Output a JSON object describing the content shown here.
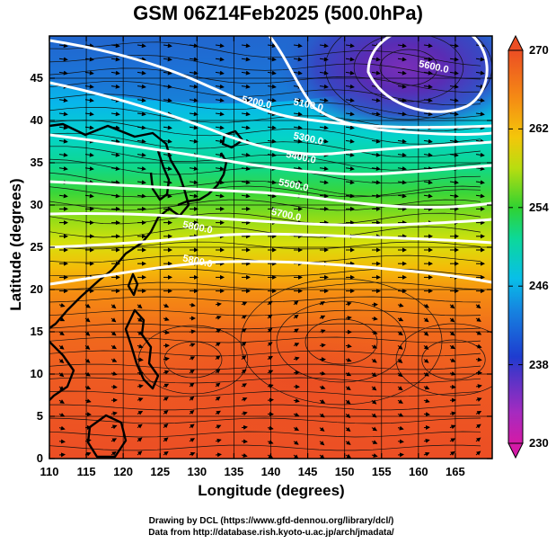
{
  "title": "GSM 06Z14Feb2025 (500.0hPa)",
  "axes": {
    "xlabel": "Longitude (degrees)",
    "ylabel": "Latitude  (degrees)",
    "xticks": [
      "110",
      "115",
      "120",
      "125",
      "130",
      "135",
      "140",
      "145",
      "150",
      "155",
      "160",
      "165"
    ],
    "yticks": [
      "0",
      "5",
      "10",
      "15",
      "20",
      "25",
      "30",
      "35",
      "40",
      "45"
    ],
    "xrange": [
      110,
      170
    ],
    "yrange": [
      0,
      50
    ]
  },
  "colorbar": {
    "ticks": [
      "230",
      "238",
      "246",
      "254",
      "262",
      "270"
    ],
    "range": [
      230,
      270
    ],
    "unit_hint": "temperature (K)"
  },
  "contours": {
    "labels": [
      "5100.0",
      "5200.0",
      "5300.0",
      "5400.0",
      "5500.0",
      "5600.0",
      "5700.0",
      "5800.0",
      "5800.0"
    ]
  },
  "credits": {
    "line1": "Drawing by DCL (https://www.gfd-dennou.org/library/dcl/)",
    "line2": "Data from http://database.rish.kyoto-u.ac.jp/arch/jmadata/"
  },
  "chart_data": {
    "type": "heatmap",
    "title": "GSM 06Z14Feb2025 (500.0hPa)",
    "xlabel": "Longitude (degrees)",
    "ylabel": "Latitude (degrees)",
    "xlim": [
      110,
      170
    ],
    "ylim": [
      0,
      50
    ],
    "field": "temperature (K) with geopotential height contours (m) and wind streamlines",
    "temperature_by_latitude": [
      {
        "lat": 0,
        "t": 268
      },
      {
        "lat": 10,
        "t": 267
      },
      {
        "lat": 15,
        "t": 266
      },
      {
        "lat": 20,
        "t": 264
      },
      {
        "lat": 25,
        "t": 261
      },
      {
        "lat": 30,
        "t": 257
      },
      {
        "lat": 35,
        "t": 252
      },
      {
        "lat": 40,
        "t": 246
      },
      {
        "lat": 45,
        "t": 241
      },
      {
        "lat": 50,
        "t": 238
      }
    ],
    "cold_core": {
      "lon": 160,
      "lat": 46,
      "t": 233
    },
    "height_contours": [
      {
        "level": 5100,
        "label_lon": 145,
        "label_lat": 41.5
      },
      {
        "level": 5200,
        "label_lon": 138,
        "label_lat": 41.8
      },
      {
        "level": 5300,
        "label_lon": 145,
        "label_lat": 37.5
      },
      {
        "level": 5400,
        "label_lon": 144,
        "label_lat": 35.3
      },
      {
        "level": 5500,
        "label_lon": 143,
        "label_lat": 32.0
      },
      {
        "level": 5600,
        "label_lon": 162,
        "label_lat": 46.0
      },
      {
        "level": 5700,
        "label_lon": 142,
        "label_lat": 28.5
      },
      {
        "level": 5800,
        "label_lon": 130,
        "label_lat": 27.0
      },
      {
        "level": 5800,
        "label_lon": 130,
        "label_lat": 23.0
      }
    ],
    "colorbar": {
      "min": 230,
      "max": 270,
      "ticks": [
        230,
        238,
        246,
        254,
        262,
        270
      ]
    }
  }
}
